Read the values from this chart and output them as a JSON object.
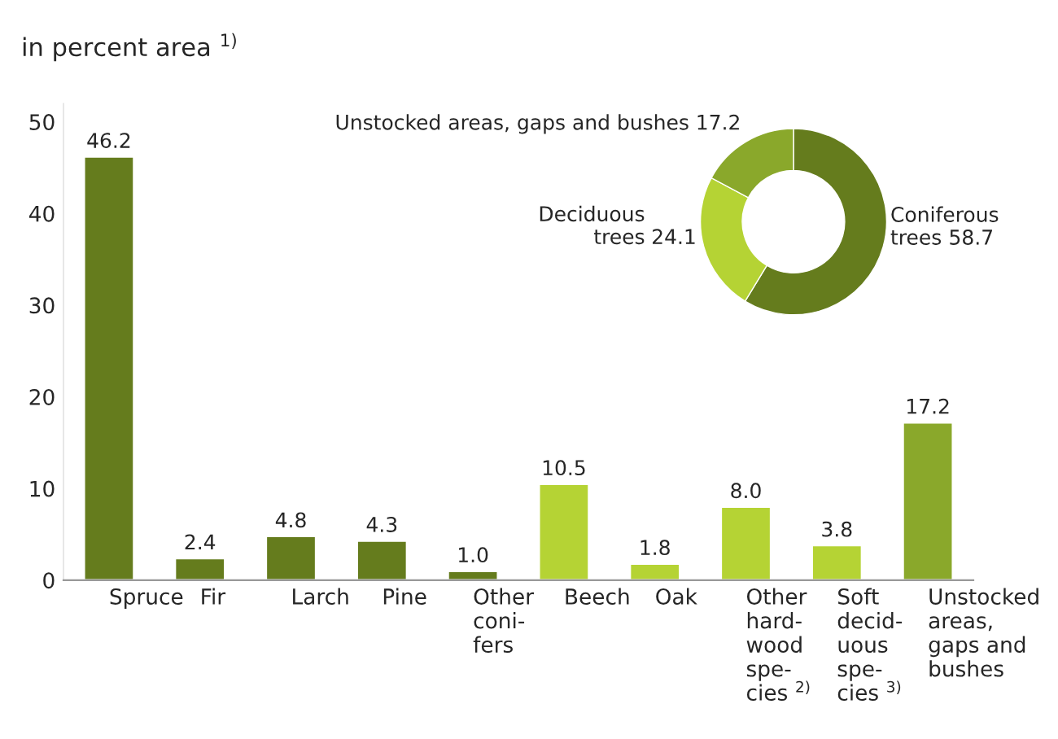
{
  "chart_data": [
    {
      "type": "bar",
      "title": "in percent area $^{1)}$",
      "categories": [
        "Spruce",
        "Fir",
        "Larch",
        "Pine",
        "Other\nconi-\nfers",
        "Beech",
        "Oak",
        "Other\nhard-\nwood\nspe-\ncies $^{2)}$",
        "Soft\ndecid-\nuous\nspe-\ncies $^{3)}$",
        "Unstocked\nareas,\ngaps and\nbushes"
      ],
      "values": [
        46.2,
        2.4,
        4.8,
        4.3,
        1.0,
        10.5,
        1.8,
        8.0,
        3.8,
        17.2
      ],
      "colors": [
        "#657c1d",
        "#657c1d",
        "#657c1d",
        "#657c1d",
        "#657c1d",
        "#b5d334",
        "#b5d334",
        "#b5d334",
        "#b5d334",
        "#8aa82b"
      ],
      "value_labels": [
        "46.2",
        "2.4",
        "4.8",
        "4.3",
        "1.0",
        "10.5",
        "1.8",
        "8.0",
        "3.8",
        "17.2"
      ],
      "ylim": [
        0,
        52
      ],
      "yticks": [
        0,
        10,
        20,
        30,
        40,
        50
      ],
      "grid": false,
      "legend": false
    },
    {
      "type": "donut",
      "categories": [
        "Coniferous\ntrees",
        "Deciduous\ntrees",
        "Unstocked areas, gaps and bushes"
      ],
      "values": [
        58.7,
        24.1,
        17.2
      ],
      "colors": [
        "#657c1d",
        "#b5d334",
        "#8aa82b"
      ],
      "value_labels": [
        "58.7",
        "24.1",
        "17.2"
      ],
      "legend": false
    }
  ]
}
